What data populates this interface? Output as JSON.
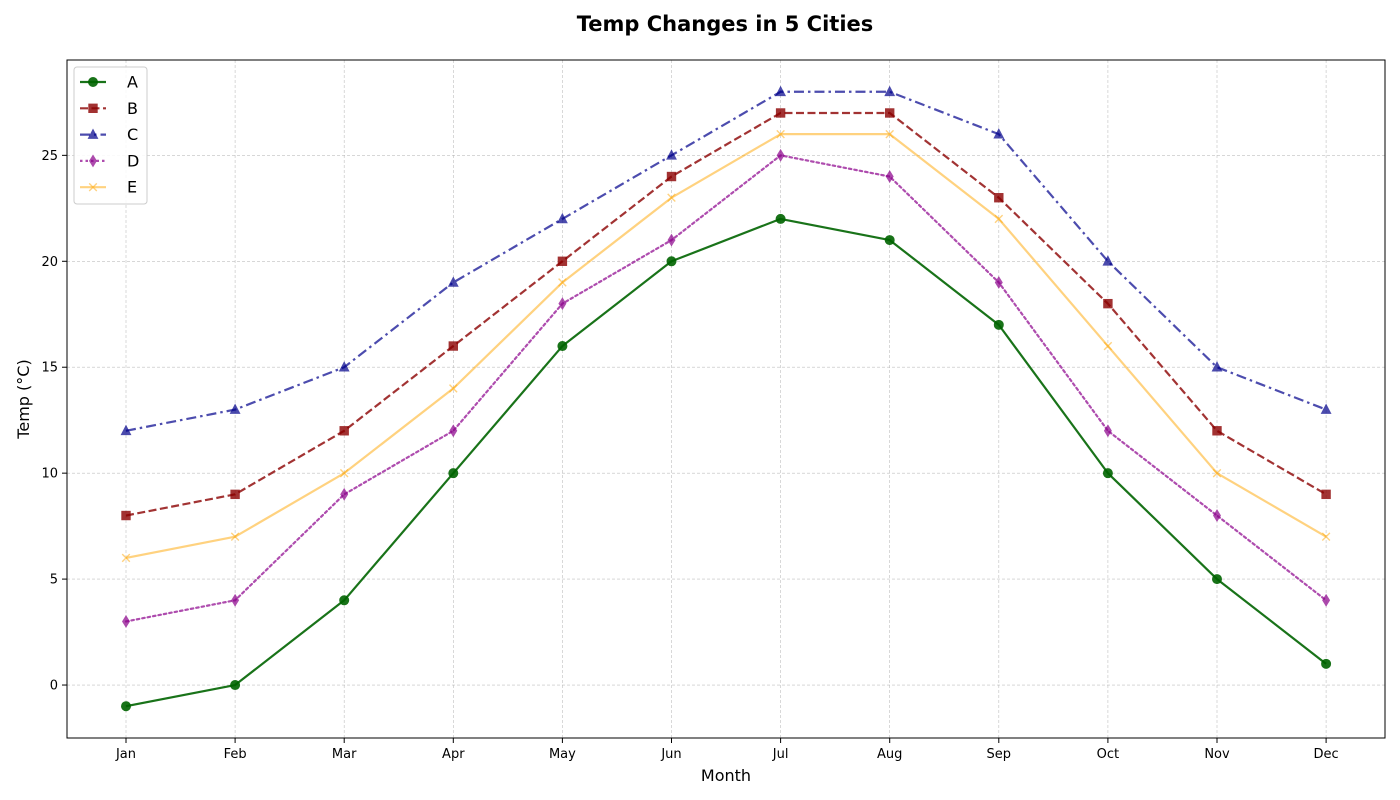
{
  "chart_data": {
    "type": "line",
    "title": "Temp Changes in 5 Cities",
    "xlabel": "Month",
    "ylabel": "Temp (°C)",
    "categories": [
      "Jan",
      "Feb",
      "Mar",
      "Apr",
      "May",
      "Jun",
      "Jul",
      "Aug",
      "Sep",
      "Oct",
      "Nov",
      "Dec"
    ],
    "ylim": [
      -2.5,
      29.5
    ],
    "yticks": [
      0,
      5,
      10,
      15,
      20,
      25
    ],
    "grid": true,
    "legend_position": "top-left",
    "series": [
      {
        "name": "A",
        "values": [
          -1,
          0,
          4,
          10,
          16,
          20,
          22,
          21,
          17,
          10,
          5,
          1
        ],
        "color": "#006400",
        "marker": "circle",
        "linestyle": "solid",
        "opacity": 0.9
      },
      {
        "name": "B",
        "values": [
          8,
          9,
          12,
          16,
          20,
          24,
          27,
          27,
          23,
          18,
          12,
          9
        ],
        "color": "#8b0000",
        "marker": "square",
        "linestyle": "dashed",
        "opacity": 0.8
      },
      {
        "name": "C",
        "values": [
          12,
          13,
          15,
          19,
          22,
          25,
          28,
          28,
          26,
          20,
          15,
          13
        ],
        "color": "#00008b",
        "marker": "triangle",
        "linestyle": "dashdot",
        "opacity": 0.7
      },
      {
        "name": "D",
        "values": [
          3,
          4,
          9,
          12,
          18,
          21,
          25,
          24,
          19,
          12,
          8,
          4
        ],
        "color": "#8b008b",
        "marker": "thin-diamond",
        "linestyle": "dotted",
        "opacity": 0.7
      },
      {
        "name": "E",
        "values": [
          6,
          7,
          10,
          14,
          19,
          23,
          26,
          26,
          22,
          16,
          10,
          7
        ],
        "color": "#ffa500",
        "marker": "x",
        "linestyle": "solid",
        "opacity": 0.5
      }
    ]
  }
}
